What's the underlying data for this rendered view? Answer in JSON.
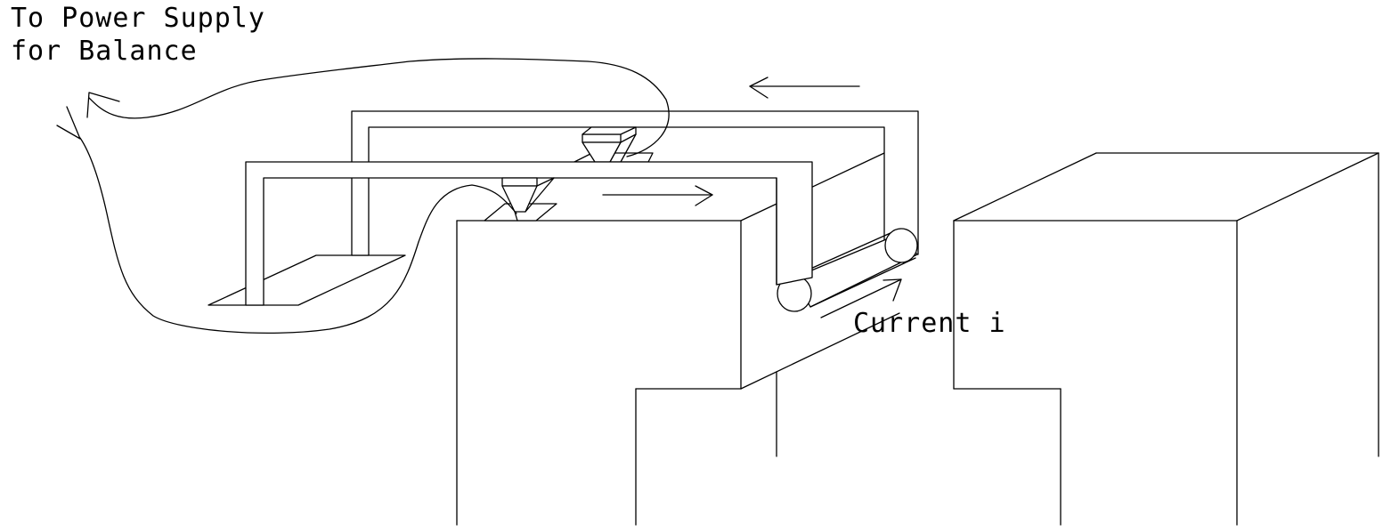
{
  "labels": {
    "title_line1": "To Power Supply",
    "title_line2": "for Balance",
    "current": "Current i"
  },
  "colors": {
    "background": "#ffffff",
    "ink": "#000000"
  }
}
